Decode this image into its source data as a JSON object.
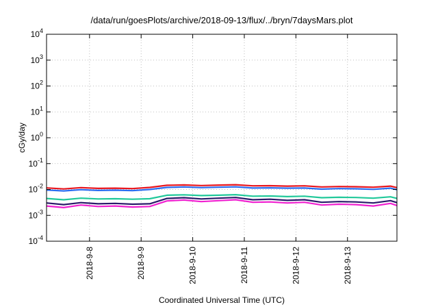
{
  "chart_data": {
    "type": "line",
    "title": "/data/run/goesPlots/archive/2018-09-13/flux/../bryn/7daysMars.plot",
    "xlabel": "Coordinated Universal Time (UTC)",
    "ylabel": "cGy/day",
    "yscale": "log",
    "ylim": [
      0.0001,
      10000
    ],
    "yticks": [
      {
        "base": "10",
        "exp": "-4"
      },
      {
        "base": "10",
        "exp": "-3"
      },
      {
        "base": "10",
        "exp": "-2"
      },
      {
        "base": "10",
        "exp": "-1"
      },
      {
        "base": "10",
        "exp": "0"
      },
      {
        "base": "10",
        "exp": "1"
      },
      {
        "base": "10",
        "exp": "2"
      },
      {
        "base": "10",
        "exp": "3"
      },
      {
        "base": "10",
        "exp": "4"
      }
    ],
    "xlim": [
      "2018-09-07 04:00",
      "2018-09-13 23:00"
    ],
    "xticks": [
      "2018-9-8",
      "2018-9-9",
      "2018-9-10",
      "2018-9-11",
      "2018-9-12",
      "2018-9-13"
    ],
    "xtick_dates": [
      "2018-09-08",
      "2018-09-09",
      "2018-09-10",
      "2018-09-11",
      "2018-09-12",
      "2018-09-13"
    ],
    "grid": true,
    "x_dates": [
      "2018-09-07 04:00",
      "2018-09-07 12:00",
      "2018-09-07 20:00",
      "2018-09-08 04:00",
      "2018-09-08 12:00",
      "2018-09-08 20:00",
      "2018-09-09 04:00",
      "2018-09-09 12:00",
      "2018-09-09 20:00",
      "2018-09-10 04:00",
      "2018-09-10 12:00",
      "2018-09-10 20:00",
      "2018-09-11 04:00",
      "2018-09-11 12:00",
      "2018-09-11 20:00",
      "2018-09-12 04:00",
      "2018-09-12 12:00",
      "2018-09-12 20:00",
      "2018-09-13 04:00",
      "2018-09-13 12:00",
      "2018-09-13 20:00",
      "2018-09-13 23:00"
    ],
    "series": [
      {
        "color": "#e8141c",
        "values": [
          0.0115,
          0.0105,
          0.0118,
          0.011,
          0.0112,
          0.0108,
          0.012,
          0.0145,
          0.015,
          0.0142,
          0.0148,
          0.0152,
          0.0138,
          0.014,
          0.0135,
          0.0138,
          0.0125,
          0.013,
          0.0128,
          0.0122,
          0.0135,
          0.0118
        ]
      },
      {
        "color": "#2a6cf0",
        "values": [
          0.0095,
          0.0088,
          0.0098,
          0.0092,
          0.0094,
          0.009,
          0.01,
          0.012,
          0.0125,
          0.0118,
          0.0122,
          0.0126,
          0.0114,
          0.0116,
          0.0112,
          0.0114,
          0.0103,
          0.0108,
          0.0106,
          0.0101,
          0.0112,
          0.0098
        ]
      },
      {
        "color": "#20c89a",
        "values": [
          0.0045,
          0.004,
          0.0046,
          0.0043,
          0.0044,
          0.0042,
          0.0044,
          0.006,
          0.0062,
          0.0058,
          0.006,
          0.0063,
          0.0055,
          0.0056,
          0.0053,
          0.0055,
          0.0048,
          0.005,
          0.0049,
          0.0046,
          0.0052,
          0.0045
        ]
      },
      {
        "color": "#2a1a6a",
        "values": [
          0.003,
          0.0026,
          0.0031,
          0.0028,
          0.0029,
          0.0027,
          0.0028,
          0.0045,
          0.0048,
          0.0043,
          0.0046,
          0.0049,
          0.004,
          0.0042,
          0.0038,
          0.004,
          0.0032,
          0.0034,
          0.0033,
          0.003,
          0.0037,
          0.0031
        ]
      },
      {
        "color": "#f020d0",
        "values": [
          0.0023,
          0.002,
          0.0025,
          0.0022,
          0.0023,
          0.0021,
          0.0022,
          0.0036,
          0.0039,
          0.0034,
          0.0037,
          0.004,
          0.0032,
          0.0033,
          0.003,
          0.0032,
          0.0025,
          0.0027,
          0.0026,
          0.0023,
          0.0029,
          0.0024
        ]
      }
    ]
  }
}
